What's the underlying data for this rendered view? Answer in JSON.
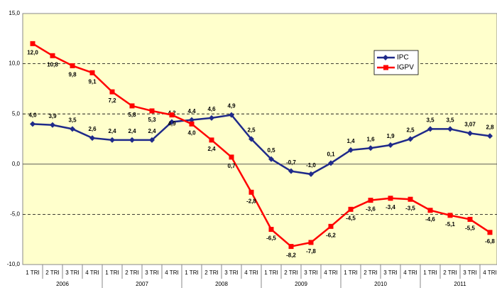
{
  "chart_data": {
    "type": "line",
    "categories": [
      "1 TRI",
      "2 TRI",
      "3 TRI",
      "4 TRI",
      "1 TRI",
      "2 TRI",
      "3 TRI",
      "4 TRI",
      "1 TRI",
      "2 TRI",
      "3 TRI",
      "4 TRI",
      "1 TRI",
      "2 TRI",
      "3 TRI",
      "4 TRI",
      "1 TRI",
      "2 TRI",
      "3 TRI",
      "4 TRI",
      "1 TRI",
      "2 TRI",
      "3 TRI",
      "4 TRI"
    ],
    "years": [
      "2006",
      "2007",
      "2008",
      "2009",
      "2010",
      "2011"
    ],
    "series": [
      {
        "name": "IPC",
        "color": "#1f2a8a",
        "marker": "diamond",
        "values": [
          4.0,
          3.9,
          3.5,
          2.6,
          2.4,
          2.4,
          2.4,
          4.2,
          4.4,
          4.6,
          4.9,
          2.5,
          0.5,
          -0.7,
          -1.0,
          0.1,
          1.4,
          1.6,
          1.9,
          2.5,
          3.5,
          3.5,
          3.07,
          2.8
        ],
        "value_labels": [
          "4,0",
          "3,9",
          "3,5",
          "2,6",
          "2,4",
          "2,4",
          "2,4",
          "4,2",
          "4,4",
          "4,6",
          "4,9",
          "2,5",
          "0,5",
          "-0,7",
          "-1,0",
          "0,1",
          "1,4",
          "1,6",
          "1,9",
          "2,5",
          "3,5",
          "3,5",
          "3,07",
          "2,8"
        ]
      },
      {
        "name": "IGPV",
        "color": "#ff0000",
        "marker": "square",
        "values": [
          12.0,
          10.8,
          9.8,
          9.1,
          7.2,
          5.8,
          5.3,
          4.9,
          4.0,
          2.4,
          0.7,
          -2.8,
          -6.5,
          -8.2,
          -7.8,
          -6.2,
          -4.5,
          -3.6,
          -3.4,
          -3.5,
          -4.6,
          -5.1,
          -5.5,
          -6.8
        ],
        "value_labels": [
          "12,0",
          "10,8",
          "9,8",
          "9,1",
          "7,2",
          "5,8",
          "5,3",
          "4,9",
          "4,0",
          "2,4",
          "0,7",
          "-2,8",
          "-6,5",
          "-8,2",
          "-7,8",
          "-6,2",
          "-4,5",
          "-3,6",
          "-3,4",
          "-3,5",
          "-4,6",
          "-5,1",
          "-5,5",
          "-6,8"
        ]
      }
    ],
    "ylim": [
      -10,
      15
    ],
    "yticks": [
      {
        "value": -10,
        "label": "-10,0"
      },
      {
        "value": -5,
        "label": "-5,0"
      },
      {
        "value": 0,
        "label": "0,0"
      },
      {
        "value": 5,
        "label": "5,0"
      },
      {
        "value": 10,
        "label": "10,0"
      },
      {
        "value": 15,
        "label": "15,0"
      }
    ],
    "grid": true,
    "legend": "upper right"
  }
}
